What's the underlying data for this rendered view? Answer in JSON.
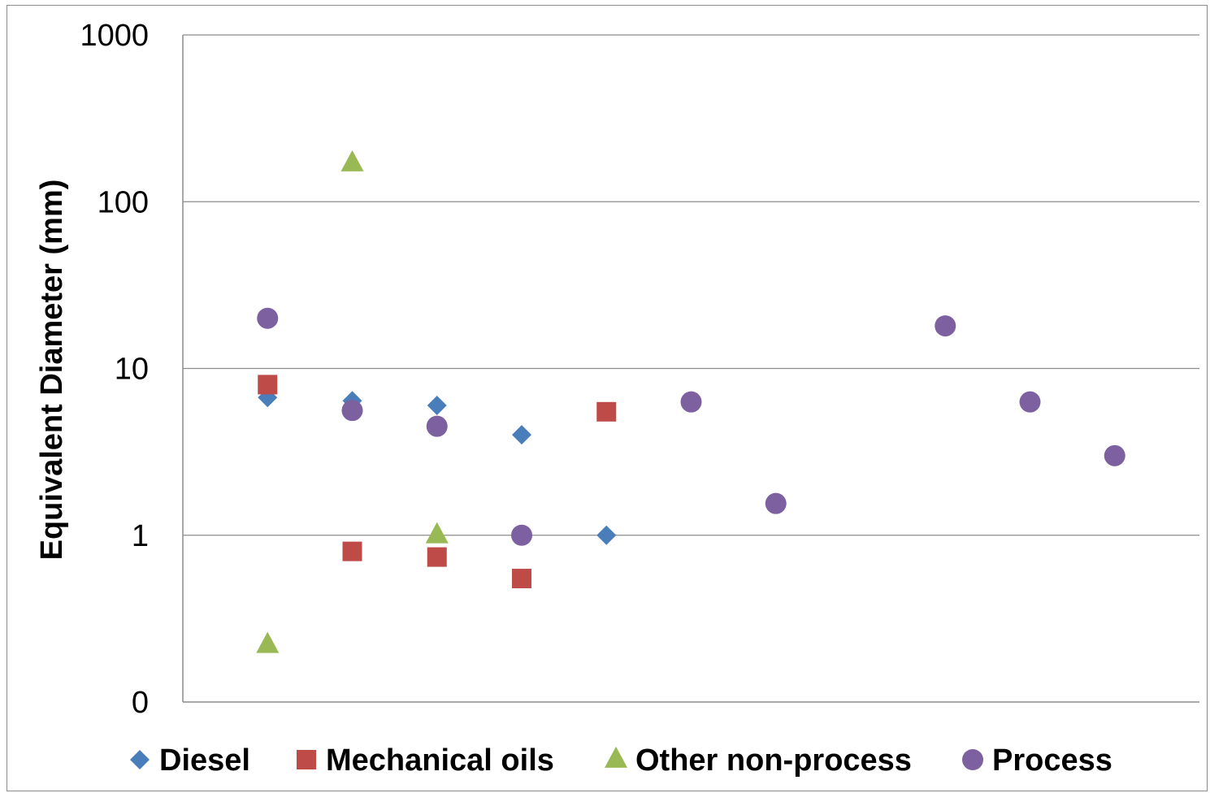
{
  "chart_data": {
    "type": "scatter",
    "title": "",
    "xlabel": "",
    "ylabel": "Equivalent Diameter (mm)",
    "y_scale": "log",
    "ylim": [
      0.1,
      1000
    ],
    "y_tick_labels": [
      "0",
      "1",
      "10",
      "100",
      "1000"
    ],
    "y_tick_values": [
      0.1,
      1,
      10,
      100,
      1000
    ],
    "x_tick_labels": [],
    "xlim": [
      0,
      12
    ],
    "grid": "horizontal",
    "legend_position": "bottom",
    "series": [
      {
        "name": "Diesel",
        "marker": "diamond",
        "color": "#4a7ebb",
        "points": [
          [
            1,
            6.7
          ],
          [
            2,
            6.4
          ],
          [
            3,
            6.0
          ],
          [
            4,
            4.0
          ],
          [
            5,
            1.0
          ]
        ]
      },
      {
        "name": "Mechanical oils",
        "marker": "square",
        "color": "#be4b48",
        "points": [
          [
            1,
            8.0
          ],
          [
            2,
            0.8
          ],
          [
            3,
            0.74
          ],
          [
            4,
            0.55
          ],
          [
            5,
            5.5
          ]
        ]
      },
      {
        "name": "Other non-process",
        "marker": "triangle",
        "color": "#98b954",
        "points": [
          [
            1,
            0.22
          ],
          [
            2,
            170
          ],
          [
            3,
            1.0
          ]
        ]
      },
      {
        "name": "Process",
        "marker": "circle",
        "color": "#7d60a0",
        "points": [
          [
            1,
            20
          ],
          [
            2,
            5.6
          ],
          [
            3,
            4.5
          ],
          [
            4,
            1.0
          ],
          [
            6,
            6.3
          ],
          [
            7,
            1.55
          ],
          [
            9,
            18
          ],
          [
            10,
            6.3
          ],
          [
            11,
            3.0
          ]
        ]
      }
    ]
  }
}
